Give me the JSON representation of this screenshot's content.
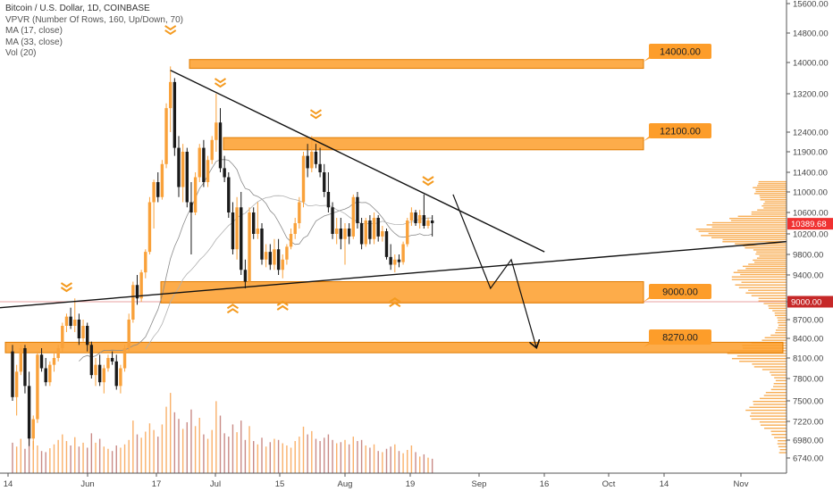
{
  "header": {
    "symbol": "Bitcoin / U.S. Dollar, 1D, COINBASE",
    "indicators": [
      "VPVR (Number Of Rows, 160, Up/Down, 70)",
      "MA (17, close)",
      "MA (33, close)",
      "Vol (20)"
    ]
  },
  "chart_data": {
    "type": "candlestick",
    "title": "Bitcoin / U.S. Dollar, 1D, COINBASE",
    "x_tick_labels": [
      "14",
      "Jun",
      "17",
      "Jul",
      "15",
      "Aug",
      "19",
      "Sep",
      "16",
      "Oct",
      "14",
      "Nov"
    ],
    "y_tick_labels": [
      "6740.00",
      "6980.00",
      "7220.00",
      "7500.00",
      "7800.00",
      "8100.00",
      "8400.00",
      "8700.00",
      "9000.00",
      "9400.00",
      "9800.00",
      "10200.00",
      "10600.00",
      "11000.00",
      "11400.00",
      "11900.00",
      "12400.00",
      "13200.00",
      "14000.00",
      "14800.00",
      "15600.00"
    ],
    "ylim": [
      6600,
      15800
    ],
    "price_badges": [
      {
        "label": "10389.68",
        "value": 10389.68,
        "color": "#f03131"
      },
      {
        "label": "9000.00",
        "value": 9000,
        "color": "#c62828"
      }
    ],
    "zones": [
      {
        "label": "14000.00",
        "low": 13850,
        "high": 14080
      },
      {
        "label": "12100.00",
        "low": 11950,
        "high": 12260
      },
      {
        "label": "9000.00",
        "low": 8980,
        "high": 9300
      },
      {
        "label": "8270.00",
        "low": 8180,
        "high": 8340
      }
    ],
    "series": [
      {
        "name": "MA (17, close)",
        "kind": "ma"
      },
      {
        "name": "MA (33, close)",
        "kind": "ma"
      }
    ],
    "candles": [
      {
        "o": 8200,
        "h": 8300,
        "l": 7500,
        "c": 7550
      },
      {
        "o": 7550,
        "h": 8000,
        "l": 7300,
        "c": 7900
      },
      {
        "o": 7900,
        "h": 8300,
        "l": 7850,
        "c": 8250
      },
      {
        "o": 8250,
        "h": 8300,
        "l": 7600,
        "c": 7700
      },
      {
        "o": 7700,
        "h": 7900,
        "l": 6900,
        "c": 7000
      },
      {
        "o": 7000,
        "h": 7300,
        "l": 6850,
        "c": 7250
      },
      {
        "o": 7250,
        "h": 8200,
        "l": 7200,
        "c": 8150
      },
      {
        "o": 8150,
        "h": 8250,
        "l": 7900,
        "c": 7950
      },
      {
        "o": 7950,
        "h": 8100,
        "l": 7700,
        "c": 7750
      },
      {
        "o": 7750,
        "h": 8050,
        "l": 7700,
        "c": 8000
      },
      {
        "o": 8000,
        "h": 8200,
        "l": 7900,
        "c": 8100
      },
      {
        "o": 8100,
        "h": 8300,
        "l": 8050,
        "c": 8250
      },
      {
        "o": 8250,
        "h": 8650,
        "l": 8200,
        "c": 8600
      },
      {
        "o": 8600,
        "h": 8800,
        "l": 8500,
        "c": 8750
      },
      {
        "o": 8750,
        "h": 8900,
        "l": 8550,
        "c": 8600
      },
      {
        "o": 8600,
        "h": 9050,
        "l": 8500,
        "c": 8700
      },
      {
        "o": 8700,
        "h": 8800,
        "l": 8300,
        "c": 8400
      },
      {
        "o": 8400,
        "h": 8700,
        "l": 8350,
        "c": 8600
      },
      {
        "o": 8600,
        "h": 8650,
        "l": 8200,
        "c": 8300
      },
      {
        "o": 8300,
        "h": 8350,
        "l": 7800,
        "c": 7850
      },
      {
        "o": 7850,
        "h": 8100,
        "l": 7700,
        "c": 8000
      },
      {
        "o": 8000,
        "h": 8150,
        "l": 7700,
        "c": 7750
      },
      {
        "o": 7750,
        "h": 8000,
        "l": 7600,
        "c": 7950
      },
      {
        "o": 7950,
        "h": 8150,
        "l": 7900,
        "c": 8100
      },
      {
        "o": 8100,
        "h": 8200,
        "l": 8000,
        "c": 8050
      },
      {
        "o": 8050,
        "h": 8150,
        "l": 7650,
        "c": 7700
      },
      {
        "o": 7700,
        "h": 8000,
        "l": 7600,
        "c": 7950
      },
      {
        "o": 7950,
        "h": 8300,
        "l": 7900,
        "c": 8250
      },
      {
        "o": 8250,
        "h": 8800,
        "l": 8200,
        "c": 8700
      },
      {
        "o": 8700,
        "h": 9300,
        "l": 8650,
        "c": 9250
      },
      {
        "o": 9250,
        "h": 9400,
        "l": 8950,
        "c": 9050
      },
      {
        "o": 9050,
        "h": 9500,
        "l": 9000,
        "c": 9450
      },
      {
        "o": 9450,
        "h": 9900,
        "l": 9350,
        "c": 9850
      },
      {
        "o": 9850,
        "h": 10900,
        "l": 9800,
        "c": 10800
      },
      {
        "o": 10800,
        "h": 11250,
        "l": 10300,
        "c": 11200
      },
      {
        "o": 11200,
        "h": 11400,
        "l": 10800,
        "c": 10900
      },
      {
        "o": 10900,
        "h": 11700,
        "l": 10850,
        "c": 11600
      },
      {
        "o": 11600,
        "h": 13000,
        "l": 11500,
        "c": 12900
      },
      {
        "o": 12900,
        "h": 13900,
        "l": 12400,
        "c": 13500
      },
      {
        "o": 13500,
        "h": 13600,
        "l": 11800,
        "c": 12000
      },
      {
        "o": 12000,
        "h": 12300,
        "l": 10900,
        "c": 11100
      },
      {
        "o": 11100,
        "h": 12100,
        "l": 10800,
        "c": 11900
      },
      {
        "o": 11900,
        "h": 12000,
        "l": 10700,
        "c": 10800
      },
      {
        "o": 10800,
        "h": 11200,
        "l": 9800,
        "c": 10600
      },
      {
        "o": 10600,
        "h": 11400,
        "l": 10550,
        "c": 11300
      },
      {
        "o": 11300,
        "h": 12100,
        "l": 11200,
        "c": 12000
      },
      {
        "o": 12000,
        "h": 12200,
        "l": 11100,
        "c": 11200
      },
      {
        "o": 11200,
        "h": 11800,
        "l": 11100,
        "c": 11700
      },
      {
        "o": 11700,
        "h": 12300,
        "l": 11600,
        "c": 12200
      },
      {
        "o": 12200,
        "h": 13200,
        "l": 11900,
        "c": 12600
      },
      {
        "o": 12600,
        "h": 12900,
        "l": 11400,
        "c": 11500
      },
      {
        "o": 11500,
        "h": 11800,
        "l": 11200,
        "c": 11300
      },
      {
        "o": 11300,
        "h": 11400,
        "l": 10500,
        "c": 10600
      },
      {
        "o": 10600,
        "h": 10800,
        "l": 9800,
        "c": 9900
      },
      {
        "o": 9900,
        "h": 10900,
        "l": 9700,
        "c": 10700
      },
      {
        "o": 10700,
        "h": 11000,
        "l": 9400,
        "c": 9500
      },
      {
        "o": 9500,
        "h": 9700,
        "l": 9200,
        "c": 9300
      },
      {
        "o": 9300,
        "h": 10700,
        "l": 9250,
        "c": 10600
      },
      {
        "o": 10600,
        "h": 10700,
        "l": 10100,
        "c": 10200
      },
      {
        "o": 10200,
        "h": 10800,
        "l": 10100,
        "c": 10300
      },
      {
        "o": 10300,
        "h": 10400,
        "l": 9600,
        "c": 9700
      },
      {
        "o": 9700,
        "h": 10000,
        "l": 9550,
        "c": 9850
      },
      {
        "o": 9850,
        "h": 10000,
        "l": 9500,
        "c": 9600
      },
      {
        "o": 9600,
        "h": 10100,
        "l": 9500,
        "c": 9900
      },
      {
        "o": 9900,
        "h": 10100,
        "l": 9400,
        "c": 9500
      },
      {
        "o": 9500,
        "h": 9800,
        "l": 9350,
        "c": 9700
      },
      {
        "o": 9700,
        "h": 10000,
        "l": 9600,
        "c": 9950
      },
      {
        "o": 9950,
        "h": 10300,
        "l": 9900,
        "c": 10200
      },
      {
        "o": 10200,
        "h": 10500,
        "l": 10100,
        "c": 10400
      },
      {
        "o": 10400,
        "h": 10900,
        "l": 10300,
        "c": 10800
      },
      {
        "o": 10800,
        "h": 11900,
        "l": 10700,
        "c": 11800
      },
      {
        "o": 11800,
        "h": 12100,
        "l": 11300,
        "c": 11500
      },
      {
        "o": 11500,
        "h": 12300,
        "l": 11400,
        "c": 11900
      },
      {
        "o": 11900,
        "h": 12100,
        "l": 11500,
        "c": 11600
      },
      {
        "o": 11600,
        "h": 12000,
        "l": 11300,
        "c": 11400
      },
      {
        "o": 11400,
        "h": 11600,
        "l": 10900,
        "c": 11000
      },
      {
        "o": 11000,
        "h": 11400,
        "l": 10600,
        "c": 10700
      },
      {
        "o": 10700,
        "h": 10800,
        "l": 10100,
        "c": 10200
      },
      {
        "o": 10200,
        "h": 10500,
        "l": 10000,
        "c": 10300
      },
      {
        "o": 10300,
        "h": 10500,
        "l": 9900,
        "c": 10100
      },
      {
        "o": 10100,
        "h": 10400,
        "l": 9600,
        "c": 10300
      },
      {
        "o": 10300,
        "h": 10400,
        "l": 10000,
        "c": 10150
      },
      {
        "o": 10150,
        "h": 10950,
        "l": 10100,
        "c": 10900
      },
      {
        "o": 10900,
        "h": 11000,
        "l": 10300,
        "c": 10400
      },
      {
        "o": 10400,
        "h": 10500,
        "l": 9900,
        "c": 10000
      },
      {
        "o": 10000,
        "h": 10500,
        "l": 9950,
        "c": 10450
      },
      {
        "o": 10450,
        "h": 10550,
        "l": 10000,
        "c": 10100
      },
      {
        "o": 10100,
        "h": 10600,
        "l": 10000,
        "c": 10500
      },
      {
        "o": 10500,
        "h": 10550,
        "l": 10050,
        "c": 10150
      },
      {
        "o": 10150,
        "h": 10350,
        "l": 10050,
        "c": 10250
      },
      {
        "o": 10250,
        "h": 10300,
        "l": 9700,
        "c": 9750
      },
      {
        "o": 9750,
        "h": 10000,
        "l": 9500,
        "c": 9600
      },
      {
        "o": 9600,
        "h": 9800,
        "l": 9450,
        "c": 9700
      },
      {
        "o": 9700,
        "h": 9800,
        "l": 9550,
        "c": 9650
      },
      {
        "o": 9650,
        "h": 10050,
        "l": 9600,
        "c": 10000
      },
      {
        "o": 10000,
        "h": 10500,
        "l": 9950,
        "c": 10450
      },
      {
        "o": 10450,
        "h": 10700,
        "l": 10350,
        "c": 10600
      },
      {
        "o": 10600,
        "h": 10650,
        "l": 10350,
        "c": 10400
      },
      {
        "o": 10400,
        "h": 10650,
        "l": 10300,
        "c": 10550
      },
      {
        "o": 10550,
        "h": 10950,
        "l": 10300,
        "c": 10350
      },
      {
        "o": 10350,
        "h": 10500,
        "l": 10300,
        "c": 10450
      },
      {
        "o": 10450,
        "h": 10550,
        "l": 10150,
        "c": 10400
      }
    ],
    "volumes": [
      55,
      48,
      62,
      44,
      80,
      58,
      50,
      40,
      38,
      45,
      52,
      60,
      70,
      58,
      50,
      65,
      48,
      55,
      46,
      72,
      55,
      62,
      48,
      44,
      40,
      50,
      46,
      52,
      60,
      95,
      70,
      64,
      75,
      90,
      78,
      66,
      88,
      120,
      145,
      110,
      98,
      80,
      92,
      115,
      85,
      100,
      70,
      62,
      78,
      130,
      104,
      72,
      66,
      88,
      74,
      95,
      60,
      85,
      58,
      52,
      64,
      48,
      56,
      62,
      60,
      54,
      50,
      46,
      58,
      66,
      84,
      70,
      76,
      62,
      58,
      64,
      70,
      60,
      54,
      56,
      60,
      52,
      66,
      58,
      60,
      50,
      46,
      52,
      40,
      38,
      44,
      48,
      52,
      40,
      36,
      42,
      50,
      38,
      30,
      34,
      28,
      26
    ],
    "pattern": {
      "triangle_upper": [
        {
          "bar": 38,
          "price": 13800
        },
        {
          "bar": 128,
          "price": 9850
        }
      ],
      "triangle_lower": [
        {
          "bar": 0,
          "price": 8900
        },
        {
          "bar": 150,
          "price": 10050
        }
      ],
      "projection": [
        {
          "bar": 106,
          "price": 10950
        },
        {
          "bar": 115,
          "price": 9200
        },
        {
          "bar": 120,
          "price": 9700
        },
        {
          "bar": 126,
          "price": 8270
        }
      ],
      "chevrons_down": [
        {
          "bar": 13,
          "price": 9200
        },
        {
          "bar": 38,
          "price": 14850
        },
        {
          "bar": 50,
          "price": 13450
        },
        {
          "bar": 73,
          "price": 12750
        },
        {
          "bar": 100,
          "price": 11200
        }
      ],
      "chevrons_up": [
        {
          "bar": 53,
          "price": 8950
        },
        {
          "bar": 65,
          "price": 9000
        },
        {
          "bar": 92,
          "price": 9050
        }
      ]
    }
  }
}
